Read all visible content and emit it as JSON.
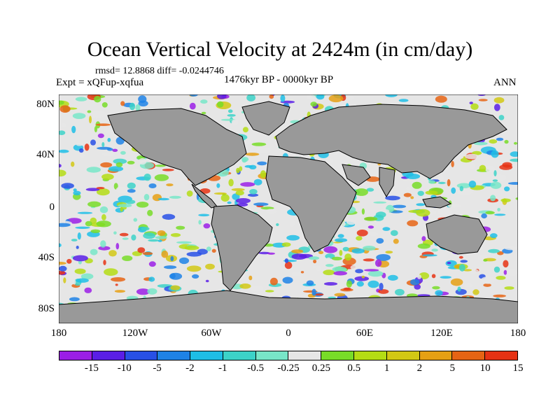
{
  "title": "Ocean Vertical Velocity at 2424m (in cm/day)",
  "stats": "rmsd= 12.8868 diff= -0.0244746",
  "experiment": "Expt = xQFup-xqfua",
  "period": "1476kyr BP - 0000kyr BP",
  "season": "ANN",
  "lat_labels": [
    "80N",
    "40N",
    "0",
    "40S",
    "80S"
  ],
  "lon_labels": [
    "180",
    "120W",
    "60W",
    "0",
    "60E",
    "120E",
    "180"
  ],
  "colorbar": {
    "labels": [
      "-15",
      "-10",
      "-5",
      "-2",
      "-1",
      "-0.5",
      "-0.25",
      "0.25",
      "0.5",
      "1",
      "2",
      "5",
      "10",
      "15"
    ],
    "colors": [
      "#9b1ee6",
      "#5a1ee6",
      "#2850e6",
      "#1e82e6",
      "#1ebee6",
      "#3cd2c8",
      "#78e6c8",
      "#e6e6e6",
      "#78dc28",
      "#b4dc14",
      "#d2c814",
      "#e6a014",
      "#e66414",
      "#e63214"
    ]
  },
  "map": {
    "land_color": "#999999",
    "background_color": "#e6e6e6"
  }
}
